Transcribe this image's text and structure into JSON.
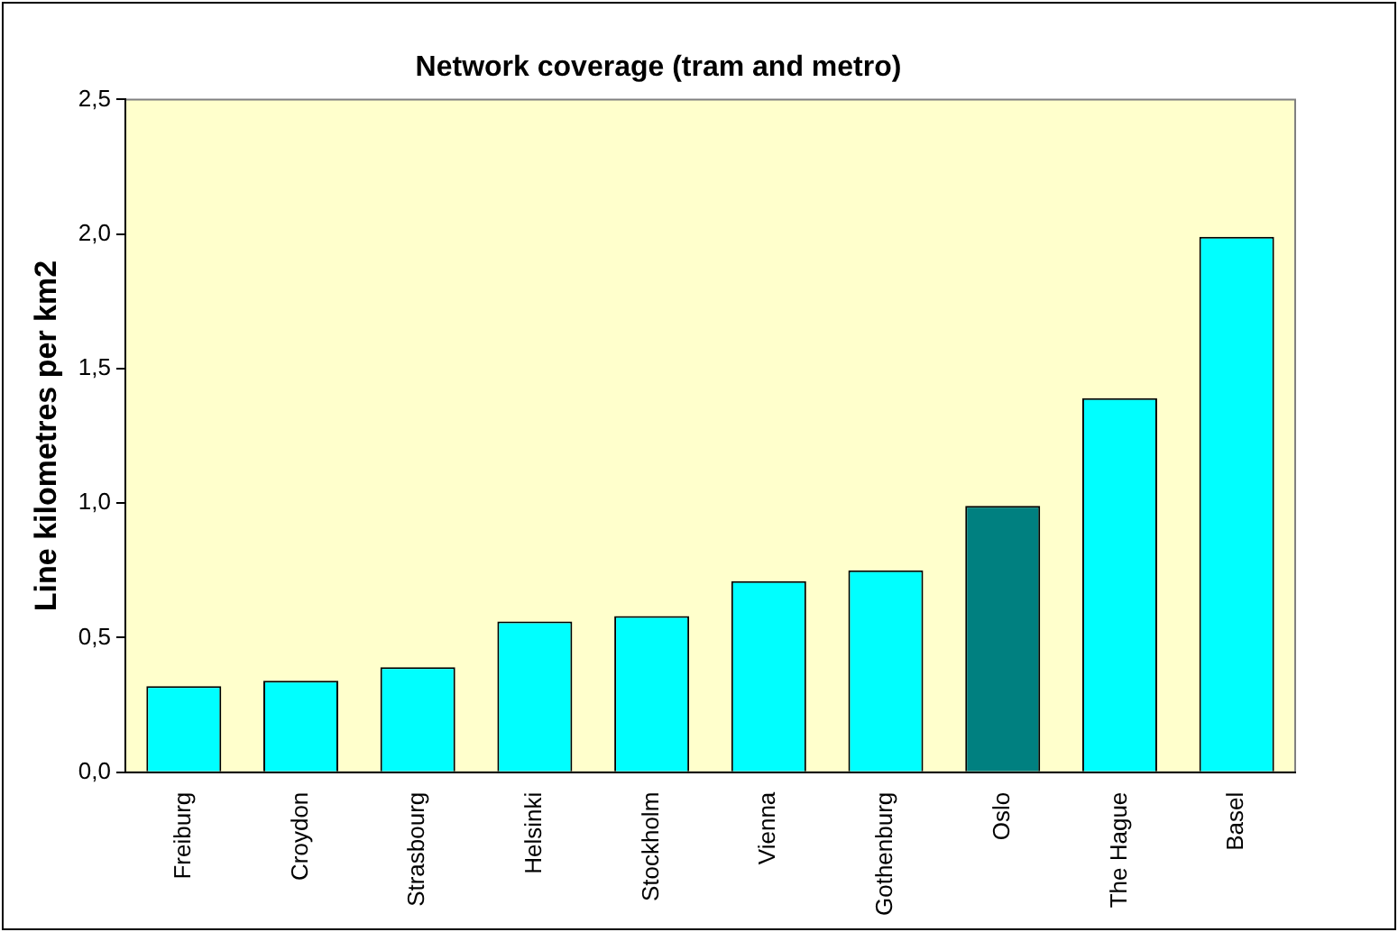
{
  "chart_data": {
    "type": "bar",
    "title": "Network coverage (tram and metro)",
    "ylabel": "Line kilometres per km2",
    "categories": [
      "Freiburg",
      "Croydon",
      "Strasbourg",
      "Helsinki",
      "Stockholm",
      "Vienna",
      "Gothenburg",
      "Oslo",
      "The Hague",
      "Basel"
    ],
    "values": [
      0.32,
      0.34,
      0.39,
      0.56,
      0.58,
      0.71,
      0.75,
      0.99,
      1.39,
      1.99
    ],
    "colors": [
      "#00ffff",
      "#00ffff",
      "#00ffff",
      "#00ffff",
      "#00ffff",
      "#00ffff",
      "#00ffff",
      "#008080",
      "#00ffff",
      "#00ffff"
    ],
    "ylim": [
      0,
      2.5
    ],
    "yticks": [
      {
        "value": 0,
        "label": "0,0"
      },
      {
        "value": 0.5,
        "label": "0,5"
      },
      {
        "value": 1,
        "label": "1,0"
      },
      {
        "value": 1.5,
        "label": "1,5"
      },
      {
        "value": 2,
        "label": "2,0"
      },
      {
        "value": 2.5,
        "label": "2,5"
      }
    ],
    "grid": false,
    "legend": false
  }
}
